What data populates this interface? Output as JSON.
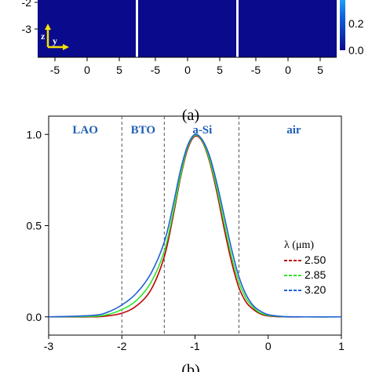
{
  "panel_a": {
    "caption": "(a)",
    "y_ticks": [
      "-2",
      "-3"
    ],
    "x_ticks": [
      "-5",
      "0",
      "5"
    ],
    "colorbar_ticks": [
      "0.2",
      "0.0"
    ],
    "axes_indicator": {
      "z": "z",
      "y": "y"
    },
    "colors": {
      "field": "#0a0a8c",
      "divider": "#ffffff",
      "colorbar_top": "#1fa3ff",
      "colorbar_bottom": "#0a0a8c"
    }
  },
  "chart_data": {
    "type": "line",
    "caption": "(b)",
    "xlim": [
      -3,
      1
    ],
    "ylim": [
      -0.1,
      1.1
    ],
    "x_ticks": [
      "-3",
      "-2",
      "-1",
      "0",
      "1"
    ],
    "x_tick_values": [
      -3,
      -2,
      -1,
      0,
      1
    ],
    "y_ticks": [
      "0.0",
      "0.5",
      "1.0"
    ],
    "y_tick_values": [
      0,
      0.5,
      1.0
    ],
    "regions": [
      {
        "label": "LAO",
        "x_center": -2.5
      },
      {
        "label": "BTO",
        "x_center": -1.71
      },
      {
        "label": "a-Si",
        "x_center": -0.9
      },
      {
        "label": "air",
        "x_center": 0.35
      }
    ],
    "boundaries": [
      -2.0,
      -1.42,
      -0.4
    ],
    "legend": {
      "title": "λ (μm)",
      "position": "right",
      "entries": [
        "2.50",
        "2.85",
        "3.20"
      ]
    },
    "series": [
      {
        "name": "2.50",
        "color": "#c00000",
        "x": [
          -3.0,
          -2.4,
          -2.2,
          -2.0,
          -1.8,
          -1.6,
          -1.42,
          -1.3,
          -1.2,
          -1.1,
          -1.0,
          -0.9,
          -0.8,
          -0.7,
          -0.6,
          -0.5,
          -0.4,
          -0.3,
          -0.2,
          -0.1,
          0.0,
          0.2,
          0.5,
          1.0
        ],
        "y": [
          0.0,
          0.0,
          0.005,
          0.02,
          0.06,
          0.15,
          0.33,
          0.55,
          0.76,
          0.92,
          0.99,
          0.96,
          0.85,
          0.68,
          0.48,
          0.3,
          0.16,
          0.08,
          0.04,
          0.015,
          0.005,
          0.0,
          0.0,
          0.0
        ]
      },
      {
        "name": "2.85",
        "color": "#2ee62e",
        "x": [
          -3.0,
          -2.4,
          -2.2,
          -2.0,
          -1.8,
          -1.6,
          -1.42,
          -1.3,
          -1.2,
          -1.1,
          -1.0,
          -0.9,
          -0.8,
          -0.7,
          -0.6,
          -0.5,
          -0.4,
          -0.3,
          -0.2,
          -0.1,
          0.0,
          0.2,
          0.5,
          1.0
        ],
        "y": [
          0.0,
          0.003,
          0.012,
          0.04,
          0.09,
          0.19,
          0.36,
          0.57,
          0.77,
          0.93,
          0.995,
          0.965,
          0.86,
          0.7,
          0.51,
          0.33,
          0.19,
          0.1,
          0.05,
          0.02,
          0.008,
          0.001,
          0.0,
          0.0
        ]
      },
      {
        "name": "3.20",
        "color": "#1f5fd6",
        "x": [
          -3.0,
          -2.4,
          -2.2,
          -2.0,
          -1.8,
          -1.6,
          -1.42,
          -1.3,
          -1.2,
          -1.1,
          -1.0,
          -0.9,
          -0.8,
          -0.7,
          -0.6,
          -0.5,
          -0.4,
          -0.3,
          -0.2,
          -0.1,
          0.0,
          0.2,
          0.5,
          1.0
        ],
        "y": [
          0.0,
          0.008,
          0.025,
          0.065,
          0.13,
          0.24,
          0.41,
          0.61,
          0.8,
          0.94,
          1.0,
          0.97,
          0.88,
          0.73,
          0.55,
          0.37,
          0.22,
          0.12,
          0.06,
          0.03,
          0.012,
          0.002,
          0.0,
          0.0
        ]
      }
    ]
  }
}
